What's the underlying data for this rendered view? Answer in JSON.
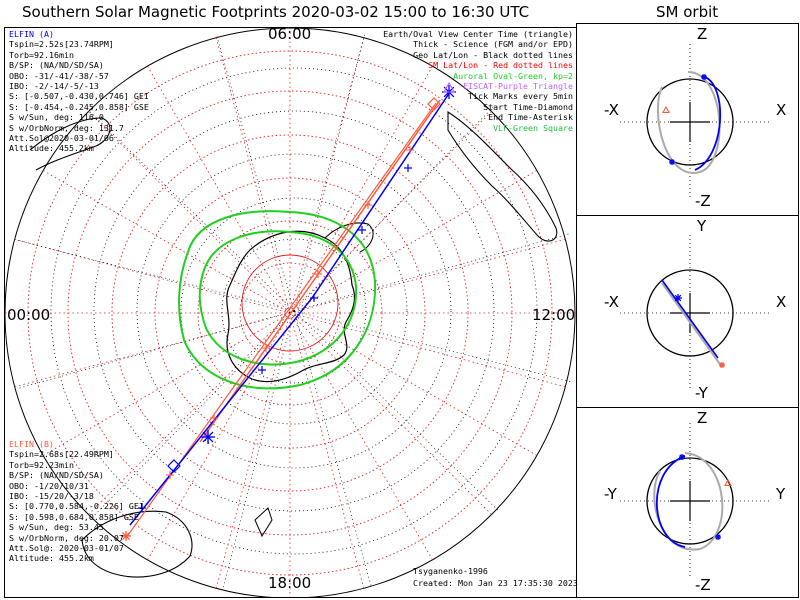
{
  "title": "Southern Solar Magnetic Footprints 2020-03-02 15:00 to 16:30 UTC",
  "orbit_title": "SM orbit",
  "colors": {
    "elfin_a": "#0000ff",
    "elfin_b": "#ff5a3c",
    "grid_sm": "#e02020",
    "aurora": "#20d020",
    "eiscat": "#c060ff",
    "vlf": "#20c040",
    "orbit_gray": "#aaaaaa"
  },
  "mlt_labels": {
    "top": "06:00",
    "left": "00:00",
    "right": "12:00",
    "bottom": "18:00"
  },
  "elfin_a": {
    "name": "ELFIN (A)",
    "lines": [
      "Tspin=2.52s[23.74RPM]",
      "Torb=92.16min",
      "B/SP: (NA/ND/SD/SA)",
      "OBO: -31/-41/-38/-57",
      "IBO: -2/-14/-5/-13",
      "S: [-0.507,-0.430,0.746] GEI",
      "S: [-0.454,-0.245,0.858] GSE",
      "S w/Sun, deg: 116.0",
      "S w/OrbNorm, deg: 131.7",
      "Att.Sol@2020-03-01/06",
      "Altitude: 455.2km"
    ]
  },
  "elfin_b": {
    "name": "ELFIN (B)",
    "lines": [
      "Tspin=2.68s[22.49RPM]",
      "Torb=92.23min",
      "B/SP: (NA/ND/SD/SA)",
      "OBO: -1/20/10/31",
      "IBO: -15/20/-3/18",
      "S: [0.770,0.584,-0.226] GEI",
      "S: [0.598,0.684,0.858] GSE",
      "S w/Sun, deg: 53.45",
      "S w/OrbNorm, deg: 20.07",
      "Att.Sol@: 2020-03-01/07",
      "Altitude: 455.2km"
    ]
  },
  "legend": [
    {
      "text": "Earth/Oval View Center Time (triangle)",
      "color": "#000000"
    },
    {
      "text": "Thick - Science (FGM and/or EPD)",
      "color": "#000000"
    },
    {
      "text": "Geo Lat/Lon - Black dotted lines",
      "color": "#000000"
    },
    {
      "text": "SM Lat/Lon - Red dotted lines",
      "color": "#ff0000"
    },
    {
      "text": "Auroral Oval-Green, kp=2",
      "color": "#20d020"
    },
    {
      "text": "EISCAT-Purple Triangle",
      "color": "#c060ff"
    },
    {
      "text": "Tick Marks every 5min",
      "color": "#000000"
    },
    {
      "text": "Start Time-Diamond",
      "color": "#000000"
    },
    {
      "text": "End Time-Asterisk",
      "color": "#000000"
    },
    {
      "text": "VLF-Green Square",
      "color": "#20c040"
    }
  ],
  "credit": "Tsyganenko-1996",
  "created": "Created: Mon Jan 23 17:35:30 2023",
  "orbit_panels": [
    {
      "top": "Z",
      "bottom": "-Z",
      "left": "-X",
      "right": "X"
    },
    {
      "top": "Y",
      "bottom": "-Y",
      "left": "-X",
      "right": "X"
    },
    {
      "top": "Z",
      "bottom": "-Z",
      "left": "-Y",
      "right": "Y"
    }
  ]
}
